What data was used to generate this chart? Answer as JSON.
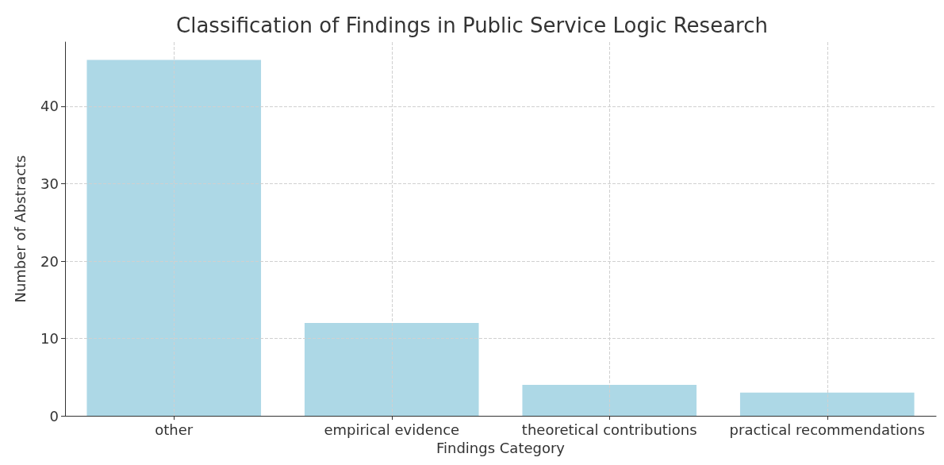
{
  "chart_data": {
    "type": "bar",
    "title": "Classification of Findings in Public Service Logic Research",
    "xlabel": "Findings Category",
    "ylabel": "Number of Abstracts",
    "categories": [
      "other",
      "empirical evidence",
      "theoretical contributions",
      "practical recommendations"
    ],
    "values": [
      46,
      12,
      4,
      3
    ],
    "color": "#add8e6",
    "ylim": [
      0,
      48.3
    ],
    "yticks": [
      0,
      10,
      20,
      30,
      40
    ],
    "grid": true
  }
}
